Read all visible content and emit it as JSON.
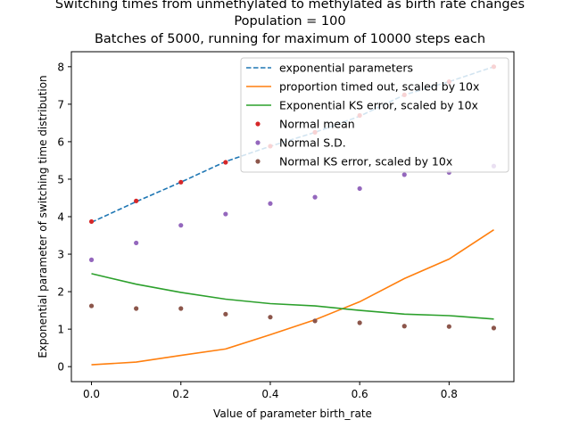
{
  "chart_data": {
    "type": "line",
    "title_lines": [
      "Switching times from unmethylated to methylated as birth rate changes",
      "Population = 100",
      "Batches of 5000, running for maximum of 10000 steps each"
    ],
    "xlabel": "Value of parameter birth_rate",
    "ylabel": "Exponential parameter of switching time distribution",
    "xlim": [
      -0.045,
      0.945
    ],
    "ylim": [
      -0.4,
      8.4
    ],
    "x_ticks": [
      "0.0",
      "0.2",
      "0.4",
      "0.6",
      "0.8"
    ],
    "y_ticks": [
      "0",
      "1",
      "2",
      "3",
      "4",
      "5",
      "6",
      "7",
      "8"
    ],
    "x": [
      0.0,
      0.1,
      0.2,
      0.3,
      0.4,
      0.5,
      0.6,
      0.7,
      0.8,
      0.9
    ],
    "legend_position": "top-right",
    "series": [
      {
        "name": "exponential parameters",
        "kind": "dashed-line",
        "color": "#1f77b4",
        "values": [
          3.85,
          4.4,
          4.92,
          5.47,
          5.88,
          6.25,
          6.68,
          7.25,
          7.6,
          8.0
        ]
      },
      {
        "name": "proportion timed out, scaled by 10x",
        "kind": "line",
        "color": "#ff7f0e",
        "values": [
          0.05,
          0.12,
          0.3,
          0.47,
          0.85,
          1.25,
          1.73,
          2.35,
          2.87,
          3.65
        ]
      },
      {
        "name": "Exponential KS error, scaled by 10x",
        "kind": "line",
        "color": "#2ca02c",
        "values": [
          2.48,
          2.2,
          1.98,
          1.8,
          1.68,
          1.62,
          1.5,
          1.4,
          1.36,
          1.27
        ]
      },
      {
        "name": "Normal mean",
        "kind": "points",
        "color": "#d62728",
        "values": [
          3.87,
          4.42,
          4.92,
          5.45,
          5.88,
          6.25,
          6.7,
          7.25,
          7.6,
          8.0
        ]
      },
      {
        "name": "Normal S.D.",
        "kind": "points",
        "color": "#9467bd",
        "values": [
          2.85,
          3.3,
          3.77,
          4.07,
          4.35,
          4.52,
          4.75,
          5.12,
          5.18,
          5.35
        ]
      },
      {
        "name": "Normal KS error, scaled by 10x",
        "kind": "points",
        "color": "#8c564b",
        "values": [
          1.62,
          1.55,
          1.55,
          1.4,
          1.32,
          1.22,
          1.17,
          1.08,
          1.07,
          1.03
        ]
      }
    ]
  }
}
